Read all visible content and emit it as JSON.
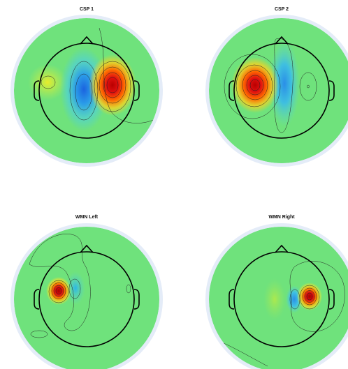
{
  "panels": [
    {
      "title": "CSP 1",
      "background": "#6fe27c",
      "blobs": [
        {
          "kind": "positive",
          "color": "#d40000",
          "strength": 1.0
        },
        {
          "kind": "negative",
          "color": "#1f7be6",
          "strength": 1.0
        },
        {
          "kind": "positive",
          "color": "#f3e12a",
          "strength": 0.5
        }
      ]
    },
    {
      "title": "CSP 2",
      "background": "#6fe27c",
      "blobs": [
        {
          "kind": "positive",
          "color": "#d40000",
          "strength": 1.0
        },
        {
          "kind": "negative",
          "color": "#38a8ec",
          "strength": 0.8
        }
      ]
    },
    {
      "title": "WMN Left",
      "background": "#6fe27c",
      "blobs": [
        {
          "kind": "positive",
          "color": "#c20000",
          "strength": 1.0
        },
        {
          "kind": "negative",
          "color": "#39c6e6",
          "strength": 0.7
        }
      ]
    },
    {
      "title": "WMN Right",
      "background": "#6fe27c",
      "blobs": [
        {
          "kind": "positive",
          "color": "#c20000",
          "strength": 1.0
        },
        {
          "kind": "negative",
          "color": "#2d9fe6",
          "strength": 0.8
        }
      ]
    }
  ],
  "colors": {
    "disk_rim": "#e4ecf8",
    "head_outline": "#000000",
    "contour": "#222222"
  }
}
